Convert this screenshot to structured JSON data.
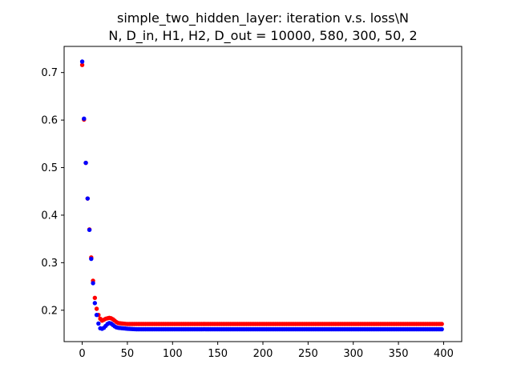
{
  "chart_data": {
    "type": "scatter",
    "title": "simple_two_hidden_layer: iteration v.s. loss\\N",
    "subtitle": "N, D_in, H1, H2, D_out = 10000, 580, 300, 50, 2",
    "xlabel": "",
    "ylabel": "",
    "xlim": [
      -20,
      420
    ],
    "ylim": [
      0.134,
      0.755
    ],
    "xticks": [
      0,
      50,
      100,
      150,
      200,
      250,
      300,
      350,
      400
    ],
    "yticks": [
      0.2,
      0.3,
      0.4,
      0.5,
      0.6,
      0.7
    ],
    "xtick_labels": [
      "0",
      "50",
      "100",
      "150",
      "200",
      "250",
      "300",
      "350",
      "400"
    ],
    "ytick_labels": [
      "0.2",
      "0.3",
      "0.4",
      "0.5",
      "0.6",
      "0.7"
    ],
    "grid": false,
    "legend": "none",
    "series": [
      {
        "color": "#ff0000",
        "x_range": [
          0,
          398
        ],
        "y_at_x0": 0.716,
        "plateau": 0.171,
        "bump_peak_x": 30,
        "bump_peak_y": 0.184,
        "values": [
          [
            0,
            0.716
          ],
          [
            1,
            0.652
          ],
          [
            2,
            0.601
          ],
          [
            3,
            0.553
          ],
          [
            4,
            0.51
          ],
          [
            5,
            0.472
          ],
          [
            6,
            0.435
          ],
          [
            7,
            0.402
          ],
          [
            8,
            0.37
          ],
          [
            9,
            0.34
          ],
          [
            10,
            0.311
          ],
          [
            11,
            0.283
          ],
          [
            12,
            0.262
          ],
          [
            13,
            0.242
          ],
          [
            14,
            0.226
          ],
          [
            15,
            0.213
          ],
          [
            16,
            0.203
          ],
          [
            17,
            0.196
          ],
          [
            18,
            0.19
          ],
          [
            19,
            0.186
          ],
          [
            20,
            0.182
          ],
          [
            22,
            0.178
          ],
          [
            24,
            0.18
          ],
          [
            26,
            0.182
          ],
          [
            28,
            0.183
          ],
          [
            30,
            0.184
          ],
          [
            32,
            0.183
          ],
          [
            34,
            0.181
          ],
          [
            36,
            0.178
          ],
          [
            38,
            0.175
          ],
          [
            40,
            0.173
          ],
          [
            45,
            0.172
          ],
          [
            50,
            0.171
          ],
          [
            398,
            0.171
          ]
        ]
      },
      {
        "color": "#0000ff",
        "x_range": [
          0,
          398
        ],
        "y_at_x0": 0.723,
        "plateau": 0.16,
        "bump_peak_x": 30,
        "bump_peak_y": 0.173,
        "values": [
          [
            0,
            0.723
          ],
          [
            1,
            0.656
          ],
          [
            2,
            0.603
          ],
          [
            3,
            0.553
          ],
          [
            4,
            0.51
          ],
          [
            5,
            0.471
          ],
          [
            6,
            0.435
          ],
          [
            7,
            0.4
          ],
          [
            8,
            0.369
          ],
          [
            9,
            0.338
          ],
          [
            10,
            0.308
          ],
          [
            11,
            0.28
          ],
          [
            12,
            0.257
          ],
          [
            13,
            0.236
          ],
          [
            14,
            0.215
          ],
          [
            15,
            0.2
          ],
          [
            16,
            0.19
          ],
          [
            17,
            0.18
          ],
          [
            18,
            0.172
          ],
          [
            19,
            0.166
          ],
          [
            20,
            0.162
          ],
          [
            22,
            0.161
          ],
          [
            24,
            0.163
          ],
          [
            26,
            0.167
          ],
          [
            28,
            0.171
          ],
          [
            30,
            0.173
          ],
          [
            32,
            0.172
          ],
          [
            34,
            0.169
          ],
          [
            36,
            0.166
          ],
          [
            38,
            0.164
          ],
          [
            40,
            0.163
          ],
          [
            45,
            0.162
          ],
          [
            50,
            0.161
          ],
          [
            60,
            0.16
          ],
          [
            398,
            0.16
          ]
        ]
      }
    ]
  }
}
